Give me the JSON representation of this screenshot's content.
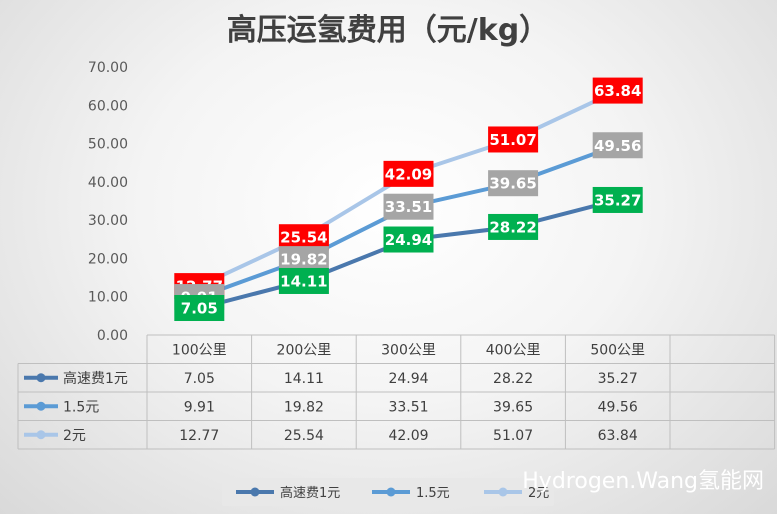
{
  "chart_data": {
    "type": "line",
    "title": "高压运氢费用（元/kg）",
    "categories": [
      "100公里",
      "200公里",
      "300公里",
      "400公里",
      "500公里"
    ],
    "ylim": [
      0,
      70
    ],
    "yticks": [
      "0.00",
      "10.00",
      "20.00",
      "30.00",
      "40.00",
      "50.00",
      "60.00",
      "70.00"
    ],
    "grid": false,
    "legend_position": "bottom",
    "data_table": true,
    "series": [
      {
        "name": "高速费1元",
        "values": [
          7.05,
          14.11,
          24.94,
          28.22,
          35.27
        ],
        "labels": [
          "7.05",
          "14.11",
          "24.94",
          "28.22",
          "35.27"
        ],
        "color": "#4a78ad",
        "label_color": "#00b050"
      },
      {
        "name": "1.5元",
        "values": [
          9.91,
          19.82,
          33.51,
          39.65,
          49.56
        ],
        "labels": [
          "9.91",
          "19.82",
          "33.51",
          "39.65",
          "49.56"
        ],
        "color": "#5b9bd5",
        "label_color": "#a5a5a5"
      },
      {
        "name": "2元",
        "values": [
          12.77,
          25.54,
          42.09,
          51.07,
          63.84
        ],
        "labels": [
          "12.77",
          "25.54",
          "42.09",
          "51.07",
          "63.84"
        ],
        "color": "#a9c6e8",
        "label_color": "#ff0000"
      }
    ]
  },
  "watermark": "Hydrogen.Wang氢能网"
}
